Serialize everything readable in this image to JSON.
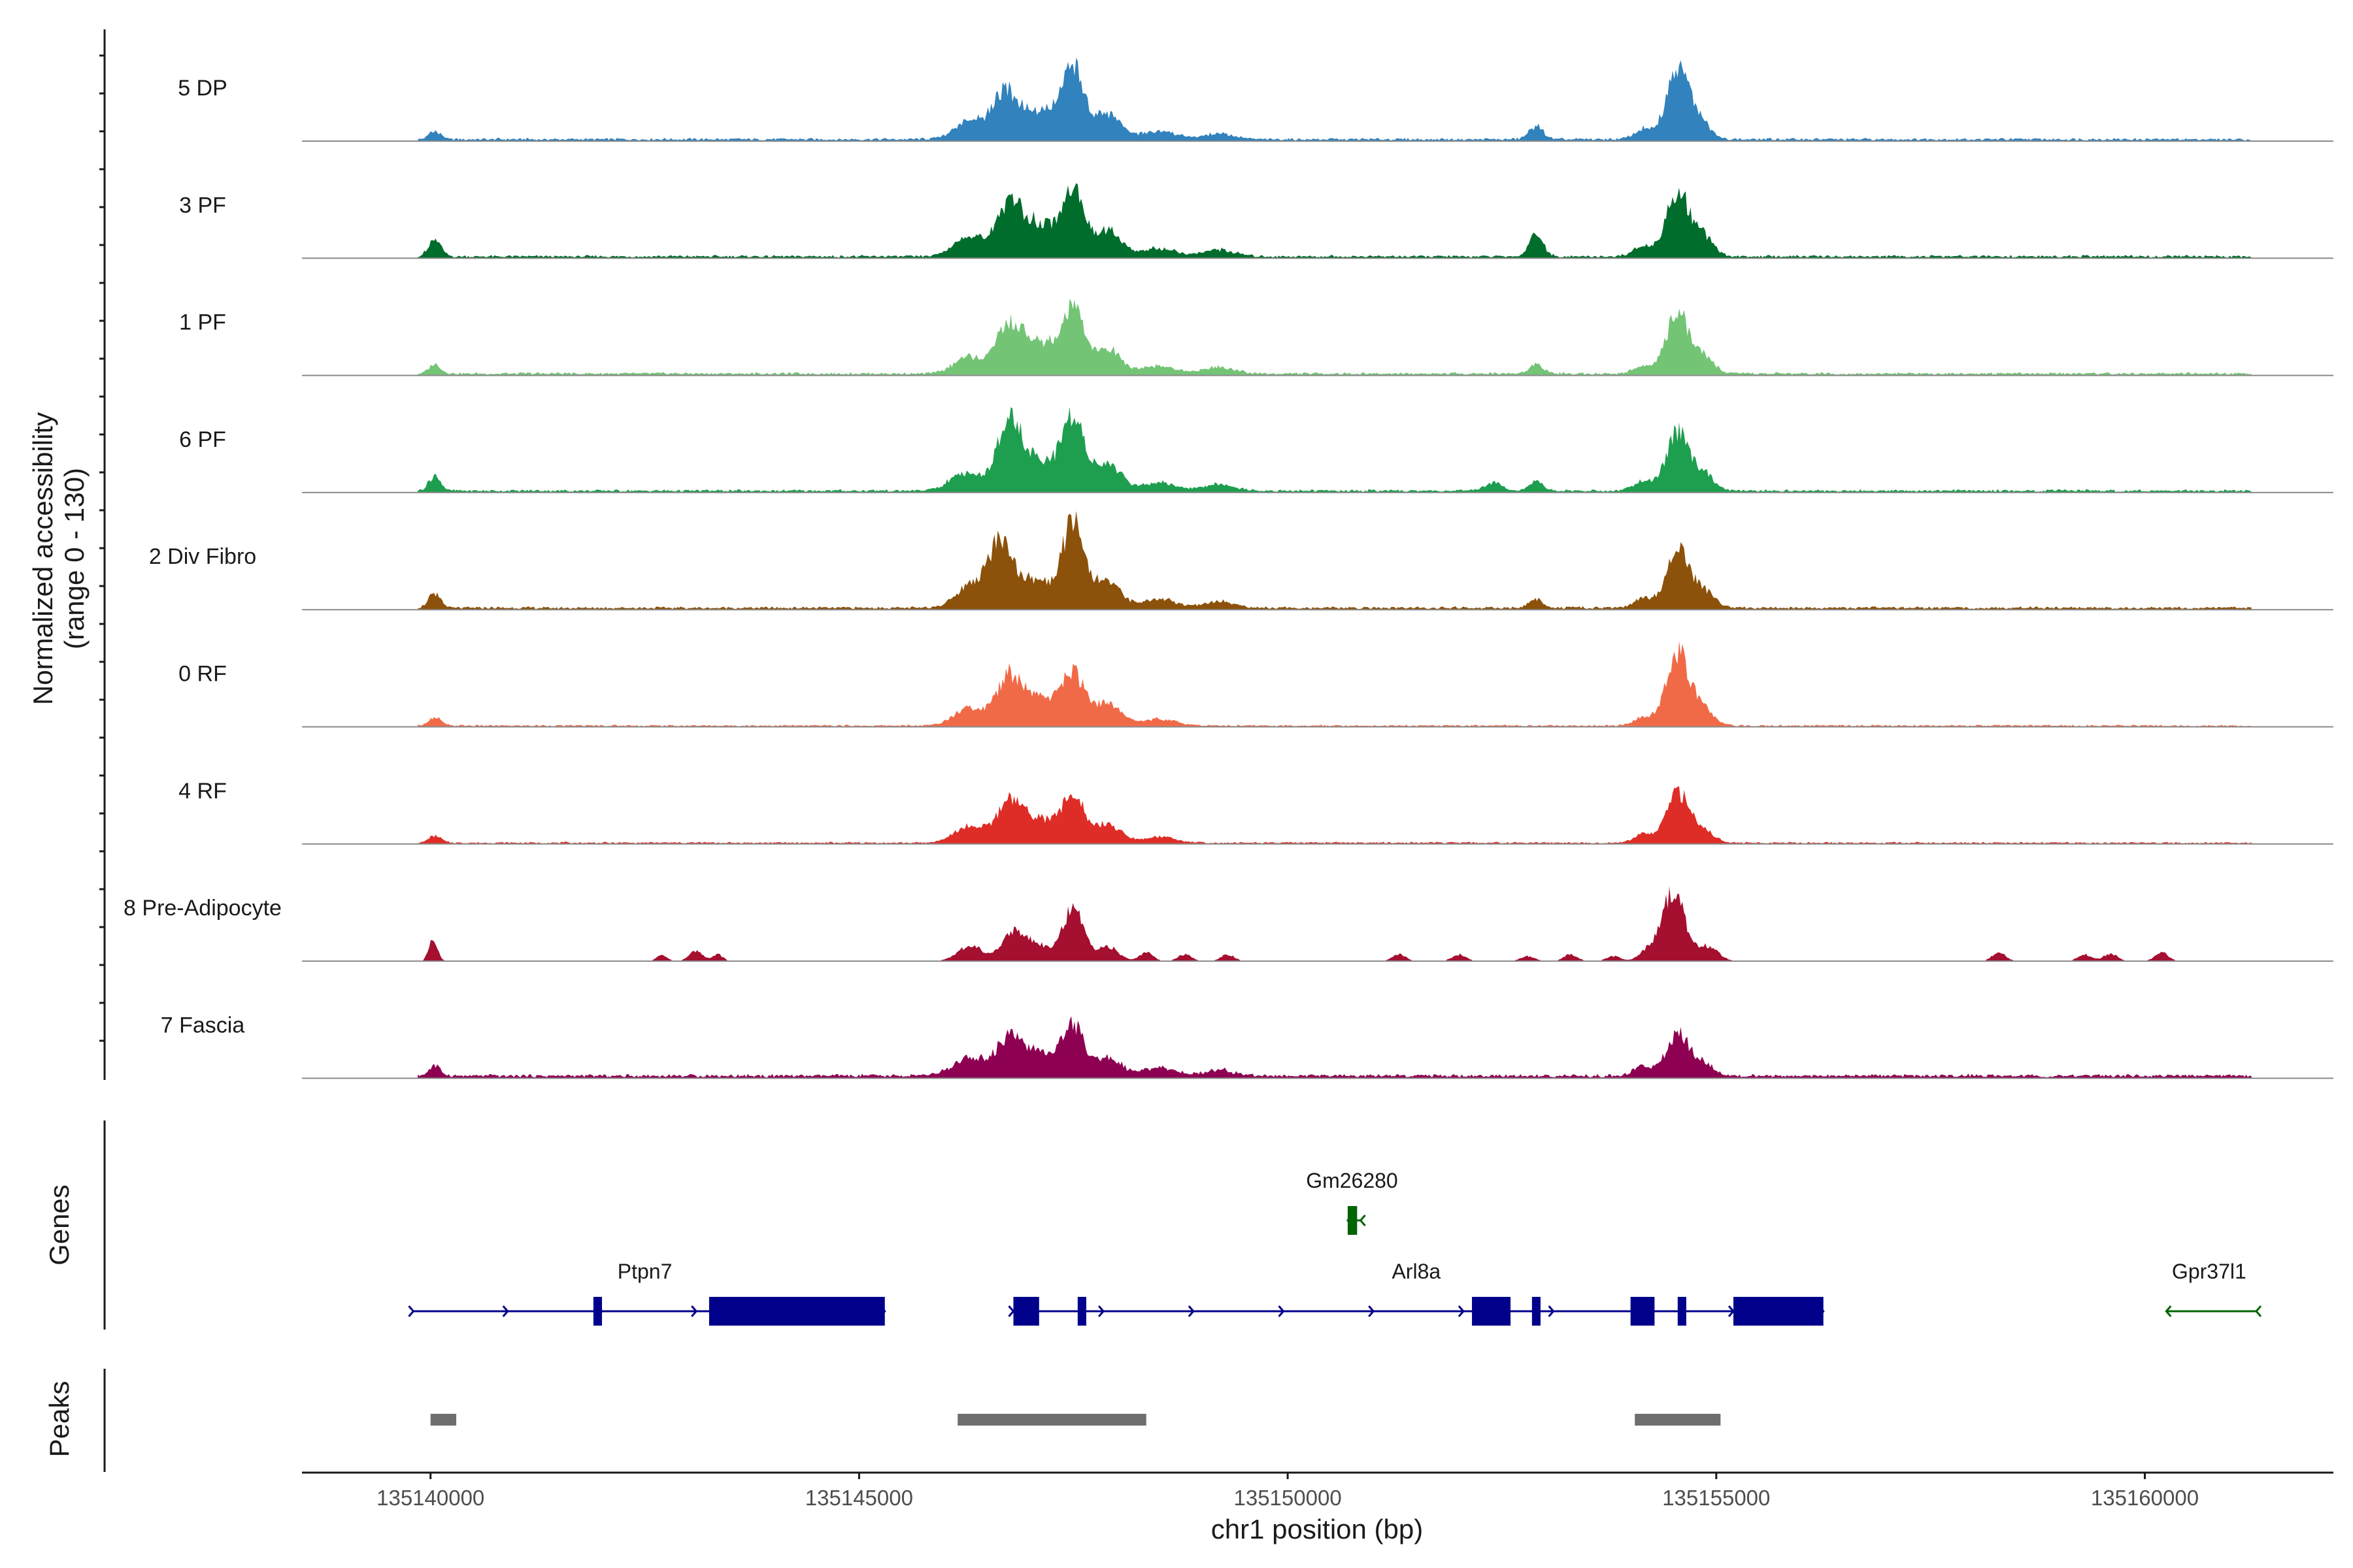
{
  "chart_data": {
    "type": "area",
    "region": {
      "start": 135138500,
      "end": 135162200,
      "chromosome": "chr1"
    },
    "ylabel_line1": "Normalized accessibility",
    "ylabel_line2": "(range 0 - 130)",
    "ylim": [
      0,
      130
    ],
    "xlabel": "chr1 position (bp)",
    "x_ticks": [
      {
        "value": 135140000,
        "label": "135140000"
      },
      {
        "value": 135145000,
        "label": "135145000"
      },
      {
        "value": 135150000,
        "label": "135150000"
      },
      {
        "value": 135155000,
        "label": "135155000"
      },
      {
        "value": 135160000,
        "label": "135160000"
      }
    ],
    "panel_titles": {
      "genes": "Genes",
      "peaks": "Peaks"
    },
    "tracks": [
      {
        "name": "5 DP",
        "color": "#3182BD",
        "start": 135139850,
        "end": 135161250,
        "baseline": 3,
        "peaks": [
          [
            135140050,
            10,
            70
          ],
          [
            135146300,
            22,
            180
          ],
          [
            135146700,
            52,
            140
          ],
          [
            135147100,
            35,
            220
          ],
          [
            135147500,
            82,
            130
          ],
          [
            135147900,
            30,
            150
          ],
          [
            135148500,
            10,
            200
          ],
          [
            135149200,
            7,
            180
          ],
          [
            135152900,
            16,
            80
          ],
          [
            135154150,
            12,
            110
          ],
          [
            135154550,
            82,
            130
          ],
          [
            135154800,
            22,
            120
          ]
        ]
      },
      {
        "name": "3 PF",
        "color": "#006D2C",
        "start": 135139850,
        "end": 135161250,
        "baseline": 3,
        "peaks": [
          [
            135140050,
            22,
            70
          ],
          [
            135146300,
            26,
            180
          ],
          [
            135146750,
            58,
            140
          ],
          [
            135147100,
            40,
            200
          ],
          [
            135147500,
            80,
            120
          ],
          [
            135147900,
            32,
            150
          ],
          [
            135148500,
            10,
            200
          ],
          [
            135149200,
            8,
            180
          ],
          [
            135152900,
            27,
            80
          ],
          [
            135154150,
            12,
            110
          ],
          [
            135154550,
            80,
            130
          ],
          [
            135154850,
            24,
            120
          ]
        ]
      },
      {
        "name": "1 PF",
        "color": "#74C476",
        "start": 135139850,
        "end": 135161250,
        "baseline": 3,
        "peaks": [
          [
            135140050,
            10,
            70
          ],
          [
            135146300,
            20,
            180
          ],
          [
            135146750,
            55,
            140
          ],
          [
            135147100,
            37,
            200
          ],
          [
            135147500,
            73,
            130
          ],
          [
            135147900,
            30,
            150
          ],
          [
            135148500,
            9,
            200
          ],
          [
            135149200,
            8,
            180
          ],
          [
            135152900,
            11,
            80
          ],
          [
            135154150,
            10,
            110
          ],
          [
            135154550,
            72,
            130
          ],
          [
            135154850,
            20,
            120
          ]
        ]
      },
      {
        "name": "6 PF",
        "color": "#1E9E4F",
        "start": 135139850,
        "end": 135161250,
        "baseline": 3,
        "peaks": [
          [
            135140050,
            17,
            70
          ],
          [
            135146250,
            22,
            180
          ],
          [
            135146750,
            81,
            140
          ],
          [
            135147100,
            35,
            200
          ],
          [
            135147500,
            87,
            130
          ],
          [
            135147900,
            32,
            150
          ],
          [
            135148500,
            10,
            200
          ],
          [
            135149200,
            8,
            180
          ],
          [
            135152400,
            10,
            100
          ],
          [
            135152900,
            11,
            80
          ],
          [
            135154150,
            12,
            110
          ],
          [
            135154550,
            71,
            130
          ],
          [
            135154850,
            20,
            120
          ]
        ]
      },
      {
        "name": "2 Div Fibro",
        "color": "#8C510A",
        "start": 135139850,
        "end": 135161250,
        "baseline": 3,
        "peaks": [
          [
            135140050,
            17,
            70
          ],
          [
            135146300,
            26,
            180
          ],
          [
            135146650,
            75,
            140
          ],
          [
            135147050,
            34,
            200
          ],
          [
            135147500,
            100,
            130
          ],
          [
            135147900,
            32,
            150
          ],
          [
            135148500,
            10,
            200
          ],
          [
            135149200,
            8,
            180
          ],
          [
            135152900,
            10,
            80
          ],
          [
            135154150,
            12,
            110
          ],
          [
            135154550,
            70,
            130
          ],
          [
            135154850,
            20,
            120
          ]
        ]
      },
      {
        "name": "0 RF",
        "color": "#F16A47",
        "start": 135139850,
        "end": 135161250,
        "baseline": 2,
        "peaks": [
          [
            135140050,
            10,
            70
          ],
          [
            135146300,
            22,
            180
          ],
          [
            135146750,
            55,
            140
          ],
          [
            135147100,
            33,
            200
          ],
          [
            135147500,
            60,
            130
          ],
          [
            135147900,
            27,
            150
          ],
          [
            135148500,
            8,
            200
          ],
          [
            135154150,
            10,
            110
          ],
          [
            135154550,
            90,
            130
          ],
          [
            135154850,
            20,
            120
          ]
        ]
      },
      {
        "name": "4 RF",
        "color": "#DE2D26",
        "start": 135139850,
        "end": 135161250,
        "baseline": 2,
        "peaks": [
          [
            135140050,
            8,
            70
          ],
          [
            135146300,
            20,
            180
          ],
          [
            135146750,
            47,
            140
          ],
          [
            135147100,
            28,
            200
          ],
          [
            135147500,
            55,
            130
          ],
          [
            135147900,
            22,
            150
          ],
          [
            135148500,
            7,
            200
          ],
          [
            135154150,
            10,
            110
          ],
          [
            135154550,
            60,
            130
          ],
          [
            135154850,
            15,
            120
          ]
        ]
      },
      {
        "name": "8 Pre-Adipocyte",
        "color": "#A50F30",
        "start": 135139850,
        "end": 135161250,
        "baseline": 0,
        "peaks": [
          [
            135140030,
            28,
            50
          ],
          [
            135142700,
            8,
            60
          ],
          [
            135143100,
            12,
            80
          ],
          [
            135143350,
            8,
            60
          ],
          [
            135146300,
            18,
            150
          ],
          [
            135146800,
            32,
            140
          ],
          [
            135147100,
            18,
            180
          ],
          [
            135147500,
            61,
            120
          ],
          [
            135147900,
            18,
            120
          ],
          [
            135148350,
            10,
            80
          ],
          [
            135148800,
            8,
            80
          ],
          [
            135149300,
            8,
            80
          ],
          [
            135151300,
            8,
            80
          ],
          [
            135152000,
            8,
            80
          ],
          [
            135152800,
            6,
            80
          ],
          [
            135153300,
            8,
            80
          ],
          [
            135153800,
            6,
            80
          ],
          [
            135154200,
            12,
            100
          ],
          [
            135154500,
            84,
            130
          ],
          [
            135154900,
            18,
            120
          ],
          [
            135158300,
            10,
            80
          ],
          [
            135159300,
            8,
            80
          ],
          [
            135159600,
            9,
            80
          ],
          [
            135160200,
            10,
            80
          ]
        ]
      },
      {
        "name": "7 Fascia",
        "color": "#8E0152",
        "start": 135139850,
        "end": 135161250,
        "baseline": 4,
        "peaks": [
          [
            135140050,
            12,
            70
          ],
          [
            135146300,
            22,
            200
          ],
          [
            135146750,
            40,
            140
          ],
          [
            135147100,
            28,
            200
          ],
          [
            135147500,
            59,
            130
          ],
          [
            135147900,
            22,
            150
          ],
          [
            135148500,
            10,
            200
          ],
          [
            135149200,
            7,
            180
          ],
          [
            135154150,
            12,
            110
          ],
          [
            135154550,
            50,
            130
          ],
          [
            135154850,
            15,
            120
          ]
        ]
      }
    ],
    "genes": [
      {
        "name": "Ptpn7",
        "strand": "+",
        "color": "#00008B",
        "start": 135139800,
        "end": 135145300,
        "exons": [
          [
            135141900,
            135142000
          ],
          [
            135143250,
            135145300
          ]
        ]
      },
      {
        "name": "Arl8a",
        "strand": "+",
        "color": "#00008B",
        "start": 135146800,
        "end": 135156250,
        "exons": [
          [
            135146800,
            135147100
          ],
          [
            135147550,
            135147650
          ],
          [
            135152150,
            135152600
          ],
          [
            135152850,
            135152950
          ],
          [
            135154000,
            135154280
          ],
          [
            135154550,
            135154650
          ],
          [
            135155200,
            135156250
          ]
        ]
      },
      {
        "name": "Gm26280",
        "strand": "-",
        "color": "#006400",
        "start": 135150700,
        "end": 135150850,
        "exons": [
          [
            135150700,
            135150810
          ]
        ]
      },
      {
        "name": "Gpr37l1",
        "strand": "-",
        "color": "#006400",
        "start": 135160250,
        "end": 135161300,
        "exons": []
      }
    ],
    "peak_regions": [
      [
        135140000,
        135140300
      ],
      [
        135146150,
        135148350
      ],
      [
        135154050,
        135155050
      ]
    ]
  }
}
